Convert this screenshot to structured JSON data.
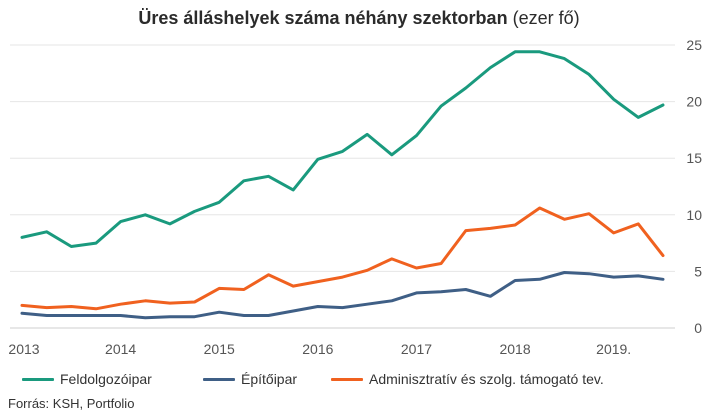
{
  "title_bold": "Üres álláshelyek száma néhány szektorban",
  "title_unit": "(ezer fő)",
  "source": "Forrás: KSH, Portfolio",
  "legend": [
    {
      "label": "Feldolgozóipar",
      "color": "#1a9a7e"
    },
    {
      "label": "Építőipar",
      "color": "#3f5f86"
    },
    {
      "label": "Adminisztratív és szolg. támogató tev.",
      "color": "#f0611f"
    }
  ],
  "chart_data": {
    "type": "line",
    "x_tick_labels": [
      "2013",
      "2014",
      "2015",
      "2016",
      "2017",
      "2018",
      "2019."
    ],
    "x": [
      "2013Q1",
      "2013Q2",
      "2013Q3",
      "2013Q4",
      "2014Q1",
      "2014Q2",
      "2014Q3",
      "2014Q4",
      "2015Q1",
      "2015Q2",
      "2015Q3",
      "2015Q4",
      "2016Q1",
      "2016Q2",
      "2016Q3",
      "2016Q4",
      "2017Q1",
      "2017Q2",
      "2017Q3",
      "2017Q4",
      "2018Q1",
      "2018Q2",
      "2018Q3",
      "2018Q4",
      "2019Q1",
      "2019Q2",
      "2019Q3"
    ],
    "ylim": [
      0,
      25
    ],
    "y_ticks": [
      0,
      5,
      10,
      15,
      20,
      25
    ],
    "y_axis_side": "right",
    "grid": true,
    "legend_position": "bottom",
    "series": [
      {
        "name": "Feldolgozóipar",
        "color": "#1a9a7e",
        "values": [
          8.0,
          8.5,
          7.2,
          7.5,
          9.4,
          10.0,
          9.2,
          10.3,
          11.1,
          13.0,
          13.4,
          12.2,
          14.9,
          15.6,
          17.1,
          15.3,
          17.0,
          19.6,
          21.2,
          23.0,
          24.4,
          24.4,
          23.8,
          22.4,
          20.2,
          18.6,
          19.7
        ]
      },
      {
        "name": "Építőipar",
        "color": "#3f5f86",
        "values": [
          1.3,
          1.1,
          1.1,
          1.1,
          1.1,
          0.9,
          1.0,
          1.0,
          1.4,
          1.1,
          1.1,
          1.5,
          1.9,
          1.8,
          2.1,
          2.4,
          3.1,
          3.2,
          3.4,
          2.8,
          4.2,
          4.3,
          4.9,
          4.8,
          4.5,
          4.6,
          4.3
        ]
      },
      {
        "name": "Adminisztratív és szolg. támogató tev.",
        "color": "#f0611f",
        "values": [
          2.0,
          1.8,
          1.9,
          1.7,
          2.1,
          2.4,
          2.2,
          2.3,
          3.5,
          3.4,
          4.7,
          3.7,
          4.1,
          4.5,
          5.1,
          6.1,
          5.3,
          5.7,
          8.6,
          8.8,
          9.1,
          10.6,
          9.6,
          10.1,
          8.4,
          9.2,
          6.4
        ]
      }
    ]
  }
}
